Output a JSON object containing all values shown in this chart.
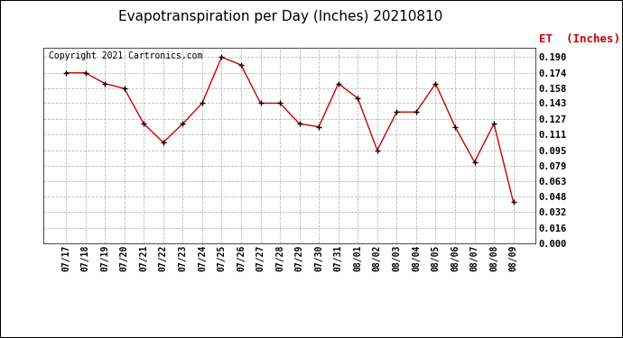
{
  "title": "Evapotranspiration per Day (Inches) 20210810",
  "copyright": "Copyright 2021 Cartronics.com",
  "legend_label": "ET  (Inches)",
  "background_color": "#ffffff",
  "plot_bg_color": "#ffffff",
  "grid_color": "#bbbbbb",
  "line_color": "#cc0000",
  "marker_color": "#000000",
  "dates": [
    "07/17",
    "07/18",
    "07/19",
    "07/20",
    "07/21",
    "07/22",
    "07/23",
    "07/24",
    "07/25",
    "07/26",
    "07/27",
    "07/28",
    "07/29",
    "07/30",
    "07/31",
    "08/01",
    "08/02",
    "08/03",
    "08/04",
    "08/05",
    "08/06",
    "08/07",
    "08/08",
    "08/09"
  ],
  "values": [
    0.174,
    0.174,
    0.163,
    0.158,
    0.122,
    0.103,
    0.122,
    0.143,
    0.19,
    0.182,
    0.143,
    0.143,
    0.122,
    0.119,
    0.163,
    0.148,
    0.095,
    0.134,
    0.134,
    0.163,
    0.119,
    0.083,
    0.122,
    0.042
  ],
  "ylim": [
    0.0,
    0.2
  ],
  "yticks": [
    0.0,
    0.016,
    0.032,
    0.048,
    0.063,
    0.079,
    0.095,
    0.111,
    0.127,
    0.143,
    0.158,
    0.174,
    0.19
  ],
  "title_fontsize": 11,
  "copyright_fontsize": 7,
  "legend_fontsize": 9,
  "tick_fontsize": 7,
  "ytick_fontsize": 7.5
}
